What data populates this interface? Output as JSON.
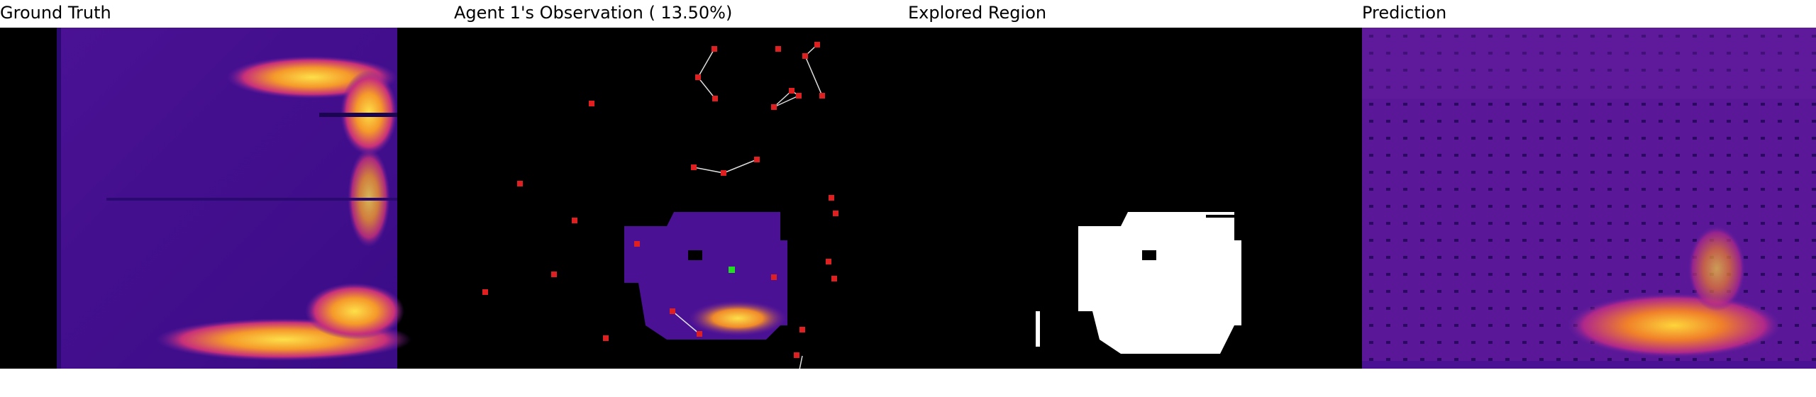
{
  "panels": {
    "ground_truth": {
      "title": "Ground Truth"
    },
    "observation": {
      "title": "Agent 1's Observation ( 13.50%)"
    },
    "explored": {
      "title": "Explored Region"
    },
    "prediction": {
      "title": "Prediction"
    }
  },
  "colors": {
    "background": "#000000",
    "field_low": "#3d0a8c",
    "field_mid": "#6a1fa0",
    "field_high": "#e3552e",
    "field_peak": "#fbd33a",
    "explored": "#ffffff",
    "agent_marker": "#e02020",
    "self_marker": "#22dd22",
    "link_line": "#dddddd"
  }
}
